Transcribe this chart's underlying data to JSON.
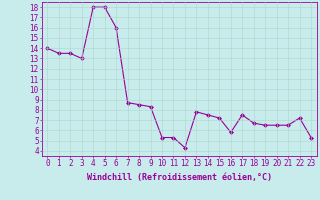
{
  "x": [
    0,
    1,
    2,
    3,
    4,
    5,
    6,
    7,
    8,
    9,
    10,
    11,
    12,
    13,
    14,
    15,
    16,
    17,
    18,
    19,
    20,
    21,
    22,
    23
  ],
  "y": [
    14,
    13.5,
    13.5,
    13,
    18,
    18,
    16,
    8.7,
    8.5,
    8.3,
    5.3,
    5.3,
    4.3,
    7.8,
    7.5,
    7.2,
    5.8,
    7.5,
    6.7,
    6.5,
    6.5,
    6.5,
    7.2,
    5.3
  ],
  "line_color": "#990099",
  "marker": "D",
  "marker_size": 2,
  "bg_color": "#c8ecec",
  "grid_color": "#b0d4cc",
  "xlabel": "Windchill (Refroidissement éolien,°C)",
  "xlabel_color": "#990099",
  "tick_color": "#990099",
  "ylim_min": 3.5,
  "ylim_max": 18.5,
  "xlim_min": -0.5,
  "xlim_max": 23.5,
  "yticks": [
    4,
    5,
    6,
    7,
    8,
    9,
    10,
    11,
    12,
    13,
    14,
    15,
    16,
    17,
    18
  ],
  "xticks": [
    0,
    1,
    2,
    3,
    4,
    5,
    6,
    7,
    8,
    9,
    10,
    11,
    12,
    13,
    14,
    15,
    16,
    17,
    18,
    19,
    20,
    21,
    22,
    23
  ],
  "tick_fontsize": 5.5,
  "xlabel_fontsize": 6.0
}
